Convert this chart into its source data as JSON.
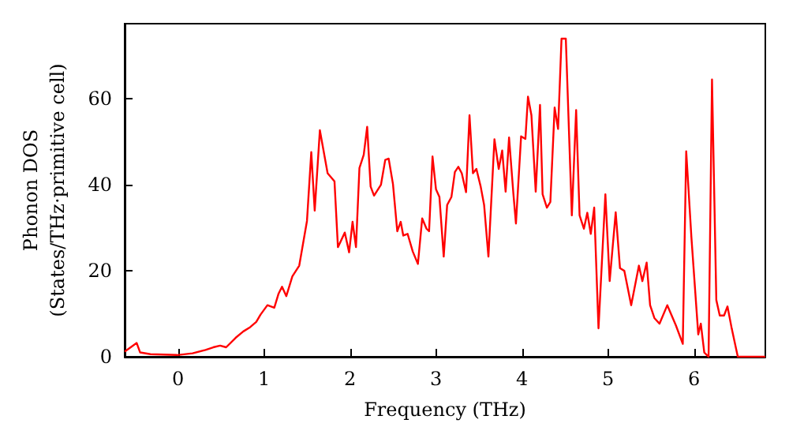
{
  "chart_data": {
    "type": "line",
    "xlabel": "Frequency (THz)",
    "ylabel": "Phonon DOS\n(States/THz·primitive cell)",
    "xlim": [
      -0.62,
      6.83
    ],
    "ylim": [
      0,
      77.5
    ],
    "xticks": [
      0,
      1,
      2,
      3,
      4,
      5,
      6
    ],
    "yticks": [
      0,
      20,
      40,
      60
    ],
    "grid": false,
    "marker": "none",
    "line_style": "solid",
    "series": [
      {
        "color": "#ff0000",
        "x": [
          -0.62,
          -0.48,
          -0.44,
          -0.32,
          -0.01,
          0.17,
          0.32,
          0.41,
          0.49,
          0.56,
          0.67,
          0.76,
          0.84,
          0.91,
          0.96,
          1.04,
          1.12,
          1.17,
          1.21,
          1.26,
          1.33,
          1.41,
          1.5,
          1.55,
          1.59,
          1.65,
          1.74,
          1.82,
          1.86,
          1.94,
          1.99,
          2.03,
          2.07,
          2.11,
          2.16,
          2.2,
          2.24,
          2.28,
          2.36,
          2.41,
          2.45,
          2.5,
          2.55,
          2.59,
          2.62,
          2.67,
          2.73,
          2.79,
          2.84,
          2.89,
          2.92,
          2.96,
          3.0,
          3.04,
          3.09,
          3.13,
          3.18,
          3.22,
          3.26,
          3.3,
          3.35,
          3.39,
          3.43,
          3.47,
          3.52,
          3.56,
          3.61,
          3.68,
          3.73,
          3.77,
          3.81,
          3.85,
          3.9,
          3.93,
          3.99,
          4.04,
          4.07,
          4.11,
          4.16,
          4.21,
          4.24,
          4.29,
          4.33,
          4.38,
          4.42,
          4.46,
          4.51,
          4.58,
          4.63,
          4.67,
          4.72,
          4.76,
          4.8,
          4.84,
          4.89,
          4.97,
          5.02,
          5.09,
          5.14,
          5.19,
          5.27,
          5.36,
          5.4,
          5.45,
          5.49,
          5.54,
          5.6,
          5.69,
          5.79,
          5.87,
          5.91,
          5.97,
          6.05,
          6.08,
          6.12,
          6.17,
          6.21,
          6.26,
          6.3,
          6.35,
          6.39,
          6.44,
          6.51,
          6.83
        ],
        "values": [
          1.2,
          3.2,
          1,
          0.6,
          0.4,
          0.8,
          1.6,
          2.2,
          2.6,
          2.2,
          4.4,
          5.9,
          6.9,
          8.1,
          9.8,
          12,
          11.4,
          14.7,
          16.3,
          14.1,
          18.7,
          21.2,
          31.6,
          47.6,
          34,
          52.7,
          42.7,
          40.8,
          25.5,
          28.9,
          24.3,
          31.4,
          25.5,
          43.9,
          47,
          53.5,
          39.6,
          37.5,
          40,
          45.8,
          46.1,
          40.2,
          29.2,
          31.4,
          28.2,
          28.6,
          24.5,
          21.6,
          32.2,
          29.8,
          29.2,
          46.6,
          39,
          37.2,
          23.3,
          35.3,
          37.2,
          43,
          44.2,
          42.7,
          38.3,
          56.2,
          42.7,
          43.7,
          39.6,
          35.3,
          23.3,
          50.6,
          43.7,
          48,
          38.4,
          51,
          38,
          31,
          51.3,
          50.7,
          60.5,
          56.2,
          38.4,
          58.6,
          37.8,
          34.7,
          36,
          58,
          53,
          74,
          74,
          32.9,
          57.4,
          32.9,
          29.8,
          33.5,
          28.6,
          34.7,
          6.6,
          37.8,
          17.6,
          33.6,
          20.6,
          20,
          12,
          21.2,
          17.6,
          21.9,
          12,
          9,
          7.7,
          12,
          7.3,
          3,
          47.8,
          27.9,
          5.2,
          7.7,
          1,
          0,
          64.5,
          13.2,
          9.6,
          9.6,
          11.7,
          6.5,
          0,
          0
        ]
      }
    ]
  }
}
